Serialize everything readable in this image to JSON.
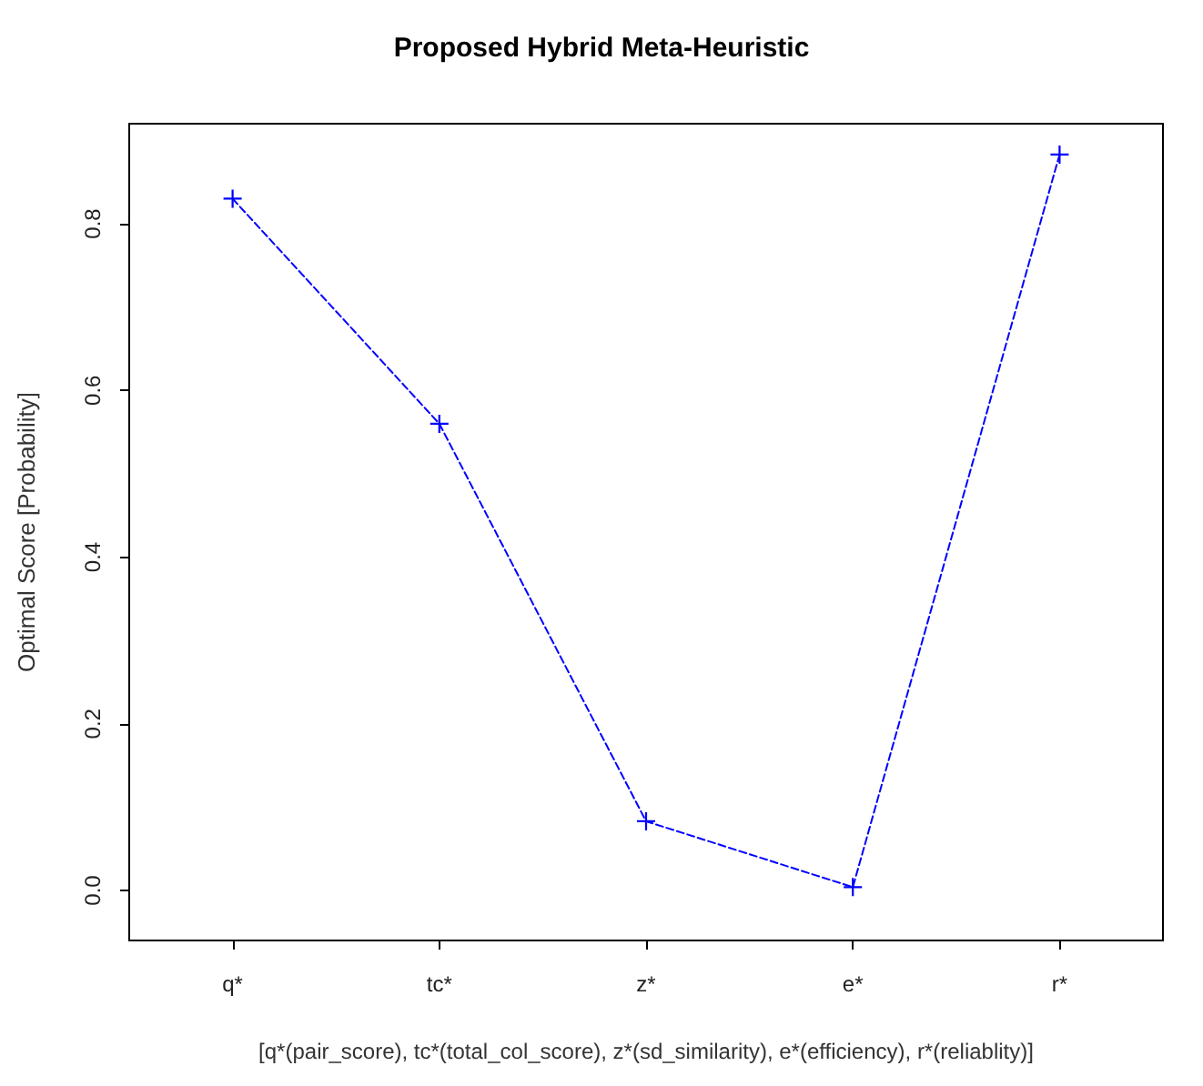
{
  "chart_data": {
    "type": "line",
    "title": "Proposed Hybrid Meta-Heuristic",
    "xlabel": "[q*(pair_score), tc*(total_col_score), z*(sd_similarity), e*(efficiency), r*(reliablity)]",
    "ylabel": "Optimal Score [Probability]",
    "categories": [
      "q*",
      "tc*",
      "z*",
      "e*",
      "r*"
    ],
    "series": [
      {
        "color": "#0000ff",
        "values": [
          0.83,
          0.56,
          0.083,
          0.004,
          0.883
        ]
      }
    ],
    "ylim": [
      -0.06,
      0.92
    ],
    "yticks": [
      {
        "value": 0,
        "label": "0.0"
      },
      {
        "value": 0.2,
        "label": "0.2"
      },
      {
        "value": 0.4,
        "label": "0.4"
      },
      {
        "value": 0.6,
        "label": "0.6"
      },
      {
        "value": 0.8,
        "label": "0.8"
      }
    ],
    "marker": "cross",
    "line_style": "dashed",
    "grid": false
  }
}
